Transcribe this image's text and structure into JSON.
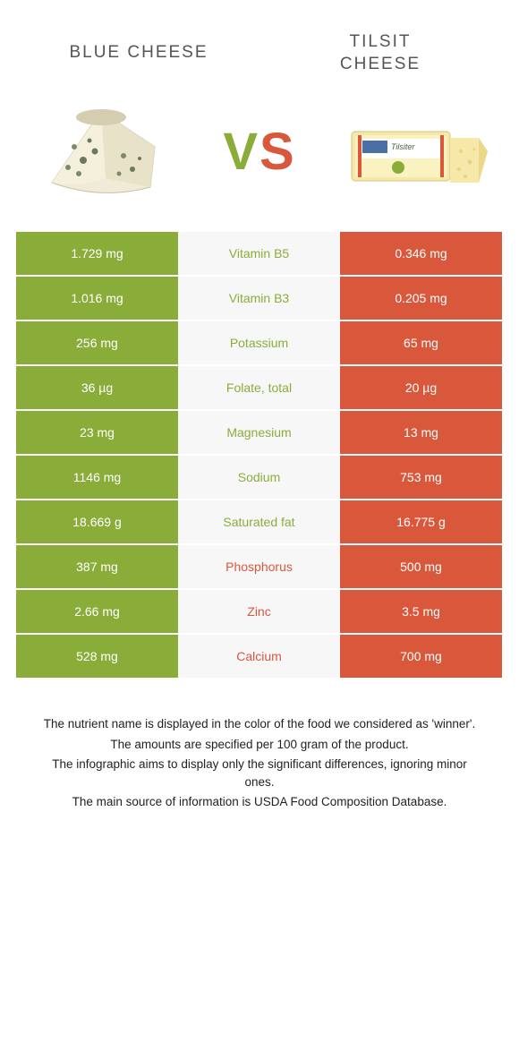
{
  "header": {
    "left_title": "BLUE CHEESE",
    "right_title_line1": "TILSIT",
    "right_title_line2": "CHEESE",
    "vs_v": "V",
    "vs_s": "S"
  },
  "colors": {
    "green": "#8aad3a",
    "orange": "#d9573b",
    "mid_bg": "#f7f7f7",
    "text_grey": "#555555"
  },
  "table": {
    "rows": [
      {
        "left": "1.729 mg",
        "mid": "Vitamin B5",
        "right": "0.346 mg",
        "winner": "green"
      },
      {
        "left": "1.016 mg",
        "mid": "Vitamin B3",
        "right": "0.205 mg",
        "winner": "green"
      },
      {
        "left": "256 mg",
        "mid": "Potassium",
        "right": "65 mg",
        "winner": "green"
      },
      {
        "left": "36 µg",
        "mid": "Folate, total",
        "right": "20 µg",
        "winner": "green"
      },
      {
        "left": "23 mg",
        "mid": "Magnesium",
        "right": "13 mg",
        "winner": "green"
      },
      {
        "left": "1146 mg",
        "mid": "Sodium",
        "right": "753 mg",
        "winner": "green"
      },
      {
        "left": "18.669 g",
        "mid": "Saturated fat",
        "right": "16.775 g",
        "winner": "green"
      },
      {
        "left": "387 mg",
        "mid": "Phosphorus",
        "right": "500 mg",
        "winner": "orange"
      },
      {
        "left": "2.66 mg",
        "mid": "Zinc",
        "right": "3.5 mg",
        "winner": "orange"
      },
      {
        "left": "528 mg",
        "mid": "Calcium",
        "right": "700 mg",
        "winner": "orange"
      }
    ]
  },
  "footer": {
    "line1": "The nutrient name is displayed in the color of the food we considered as 'winner'.",
    "line2": "The amounts are specified per 100 gram of the product.",
    "line3": "The infographic aims to display only the significant differences, ignoring minor ones.",
    "line4": "The main source of information is USDA Food Composition Database."
  }
}
